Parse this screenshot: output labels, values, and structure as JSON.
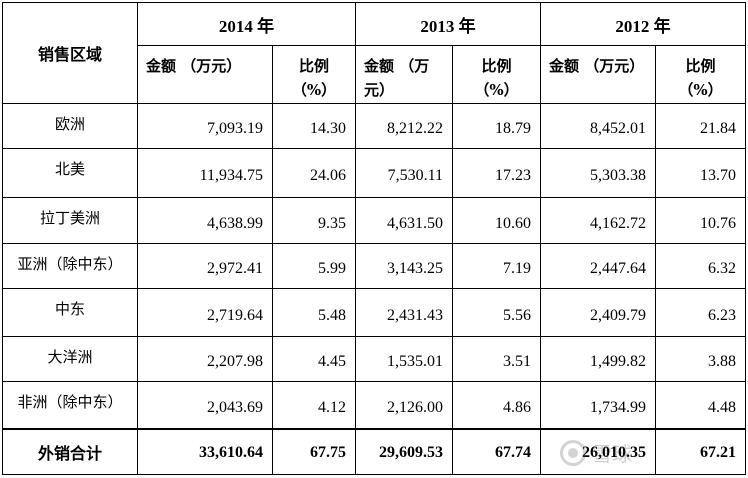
{
  "table": {
    "region_header": "销售区域",
    "years": [
      "2014 年",
      "2013 年",
      "2012 年"
    ],
    "sub_headers": [
      {
        "amount": "金额 （万元）",
        "ratio_label": "比例",
        "ratio_unit": "（%）"
      },
      {
        "amount": "金额 （万元）",
        "ratio_label": "比例",
        "ratio_unit": "（%）"
      },
      {
        "amount": "金额 （万元）",
        "ratio_label": "比例",
        "ratio_unit": "（%）"
      }
    ],
    "rows": [
      {
        "region": "欧洲",
        "values": [
          "7,093.19",
          "14.30",
          "8,212.22",
          "18.79",
          "8,452.01",
          "21.84"
        ]
      },
      {
        "region": "北美",
        "values": [
          "11,934.75",
          "24.06",
          "7,530.11",
          "17.23",
          "5,303.38",
          "13.70"
        ]
      },
      {
        "region": "拉丁美洲",
        "values": [
          "4,638.99",
          "9.35",
          "4,631.50",
          "10.60",
          "4,162.72",
          "10.76"
        ]
      },
      {
        "region": "亚洲（除中东）",
        "values": [
          "2,972.41",
          "5.99",
          "3,143.25",
          "7.19",
          "2,447.64",
          "6.32"
        ]
      },
      {
        "region": "中东",
        "values": [
          "2,719.64",
          "5.48",
          "2,431.43",
          "5.56",
          "2,409.79",
          "6.23"
        ]
      },
      {
        "region": "大洋洲",
        "values": [
          "2,207.98",
          "4.45",
          "1,535.01",
          "3.51",
          "1,499.82",
          "3.88"
        ]
      },
      {
        "region": "非洲（除中东）",
        "values": [
          "2,043.69",
          "4.12",
          "2,126.00",
          "4.86",
          "1,734.99",
          "4.48"
        ]
      }
    ],
    "total": {
      "region": "外销合计",
      "values": [
        "33,610.64",
        "67.75",
        "29,609.53",
        "67.74",
        "26,010.35",
        "67.21"
      ]
    }
  },
  "watermark": {
    "text": "雪球",
    "icon": "snowball-logo-icon"
  }
}
